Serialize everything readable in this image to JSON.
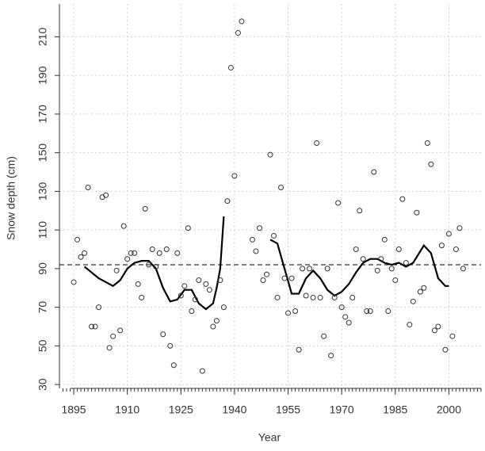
{
  "chart_data": {
    "type": "scatter",
    "x_label": "Year",
    "y_label": "Snow depth (cm)",
    "x": [
      1895,
      1896,
      1897,
      1898,
      1899,
      1900,
      1901,
      1902,
      1903,
      1904,
      1905,
      1906,
      1907,
      1908,
      1909,
      1910,
      1911,
      1912,
      1913,
      1914,
      1915,
      1916,
      1917,
      1918,
      1919,
      1920,
      1921,
      1922,
      1923,
      1924,
      1925,
      1926,
      1927,
      1928,
      1929,
      1930,
      1931,
      1932,
      1933,
      1934,
      1935,
      1936,
      1937,
      1938,
      1939,
      1940,
      1941,
      1942,
      1945,
      1946,
      1947,
      1948,
      1949,
      1950,
      1951,
      1952,
      1953,
      1954,
      1955,
      1956,
      1957,
      1958,
      1959,
      1960,
      1961,
      1962,
      1963,
      1964,
      1965,
      1966,
      1967,
      1968,
      1969,
      1970,
      1971,
      1972,
      1973,
      1974,
      1975,
      1976,
      1977,
      1978,
      1979,
      1980,
      1981,
      1982,
      1983,
      1984,
      1985,
      1986,
      1987,
      1988,
      1989,
      1990,
      1991,
      1992,
      1993,
      1994,
      1995,
      1996,
      1997,
      1998,
      1999,
      2000,
      2001,
      2002,
      2003,
      2004
    ],
    "values": [
      83,
      105,
      96,
      98,
      132,
      60,
      60,
      70,
      127,
      128,
      49,
      55,
      89,
      58,
      112,
      95,
      98,
      98,
      82,
      75,
      121,
      92,
      100,
      91,
      98,
      56,
      100,
      50,
      40,
      98,
      76,
      81,
      111,
      68,
      74,
      84,
      37,
      82,
      79,
      60,
      63,
      84,
      70,
      125,
      194,
      138,
      212,
      218,
      105,
      99,
      111,
      84,
      87,
      149,
      107,
      75,
      132,
      85,
      67,
      85,
      68,
      48,
      90,
      76,
      90,
      75,
      155,
      75,
      55,
      90,
      45,
      75,
      124,
      70,
      65,
      62,
      75,
      100,
      120,
      95,
      68,
      68,
      140,
      89,
      95,
      105,
      68,
      90,
      84,
      100,
      126,
      93,
      61,
      73,
      119,
      78,
      80,
      155,
      144,
      58,
      60,
      102,
      48,
      108,
      55,
      100,
      111,
      90
    ],
    "marker_color": "#333333",
    "smooth": {
      "color": "#000000",
      "x": [
        1898,
        1900,
        1902,
        1904,
        1906,
        1908,
        1910,
        1912,
        1914,
        1916,
        1918,
        1920,
        1922,
        1924,
        1926,
        1928,
        1930,
        1932,
        1934,
        1935,
        1936,
        1937,
        1944,
        1950,
        1952,
        1954,
        1956,
        1958,
        1960,
        1962,
        1964,
        1966,
        1968,
        1970,
        1972,
        1974,
        1976,
        1978,
        1980,
        1982,
        1984,
        1986,
        1988,
        1990,
        1992,
        1993,
        1995,
        1997,
        1999,
        2000
      ],
      "values": [
        91,
        88,
        85,
        83,
        81,
        84,
        90,
        93,
        94,
        94,
        90,
        80,
        73,
        74,
        79,
        79,
        72,
        69,
        72,
        80,
        90,
        117,
        null,
        105,
        103,
        90,
        77,
        77,
        85,
        89,
        85,
        79,
        76,
        78,
        82,
        88,
        93,
        95,
        95,
        93,
        92,
        93,
        91,
        93,
        99,
        102,
        98,
        85,
        81,
        81
      ]
    },
    "reference_line": 92,
    "xlim": [
      1891,
      2009
    ],
    "ylim": [
      28,
      227
    ],
    "xticks": [
      1895,
      1910,
      1925,
      1940,
      1955,
      1970,
      1985,
      2000
    ],
    "yticks": [
      30,
      50,
      70,
      90,
      110,
      130,
      150,
      170,
      190,
      210
    ],
    "x_minor_tick_interval": 1,
    "grid": true
  }
}
